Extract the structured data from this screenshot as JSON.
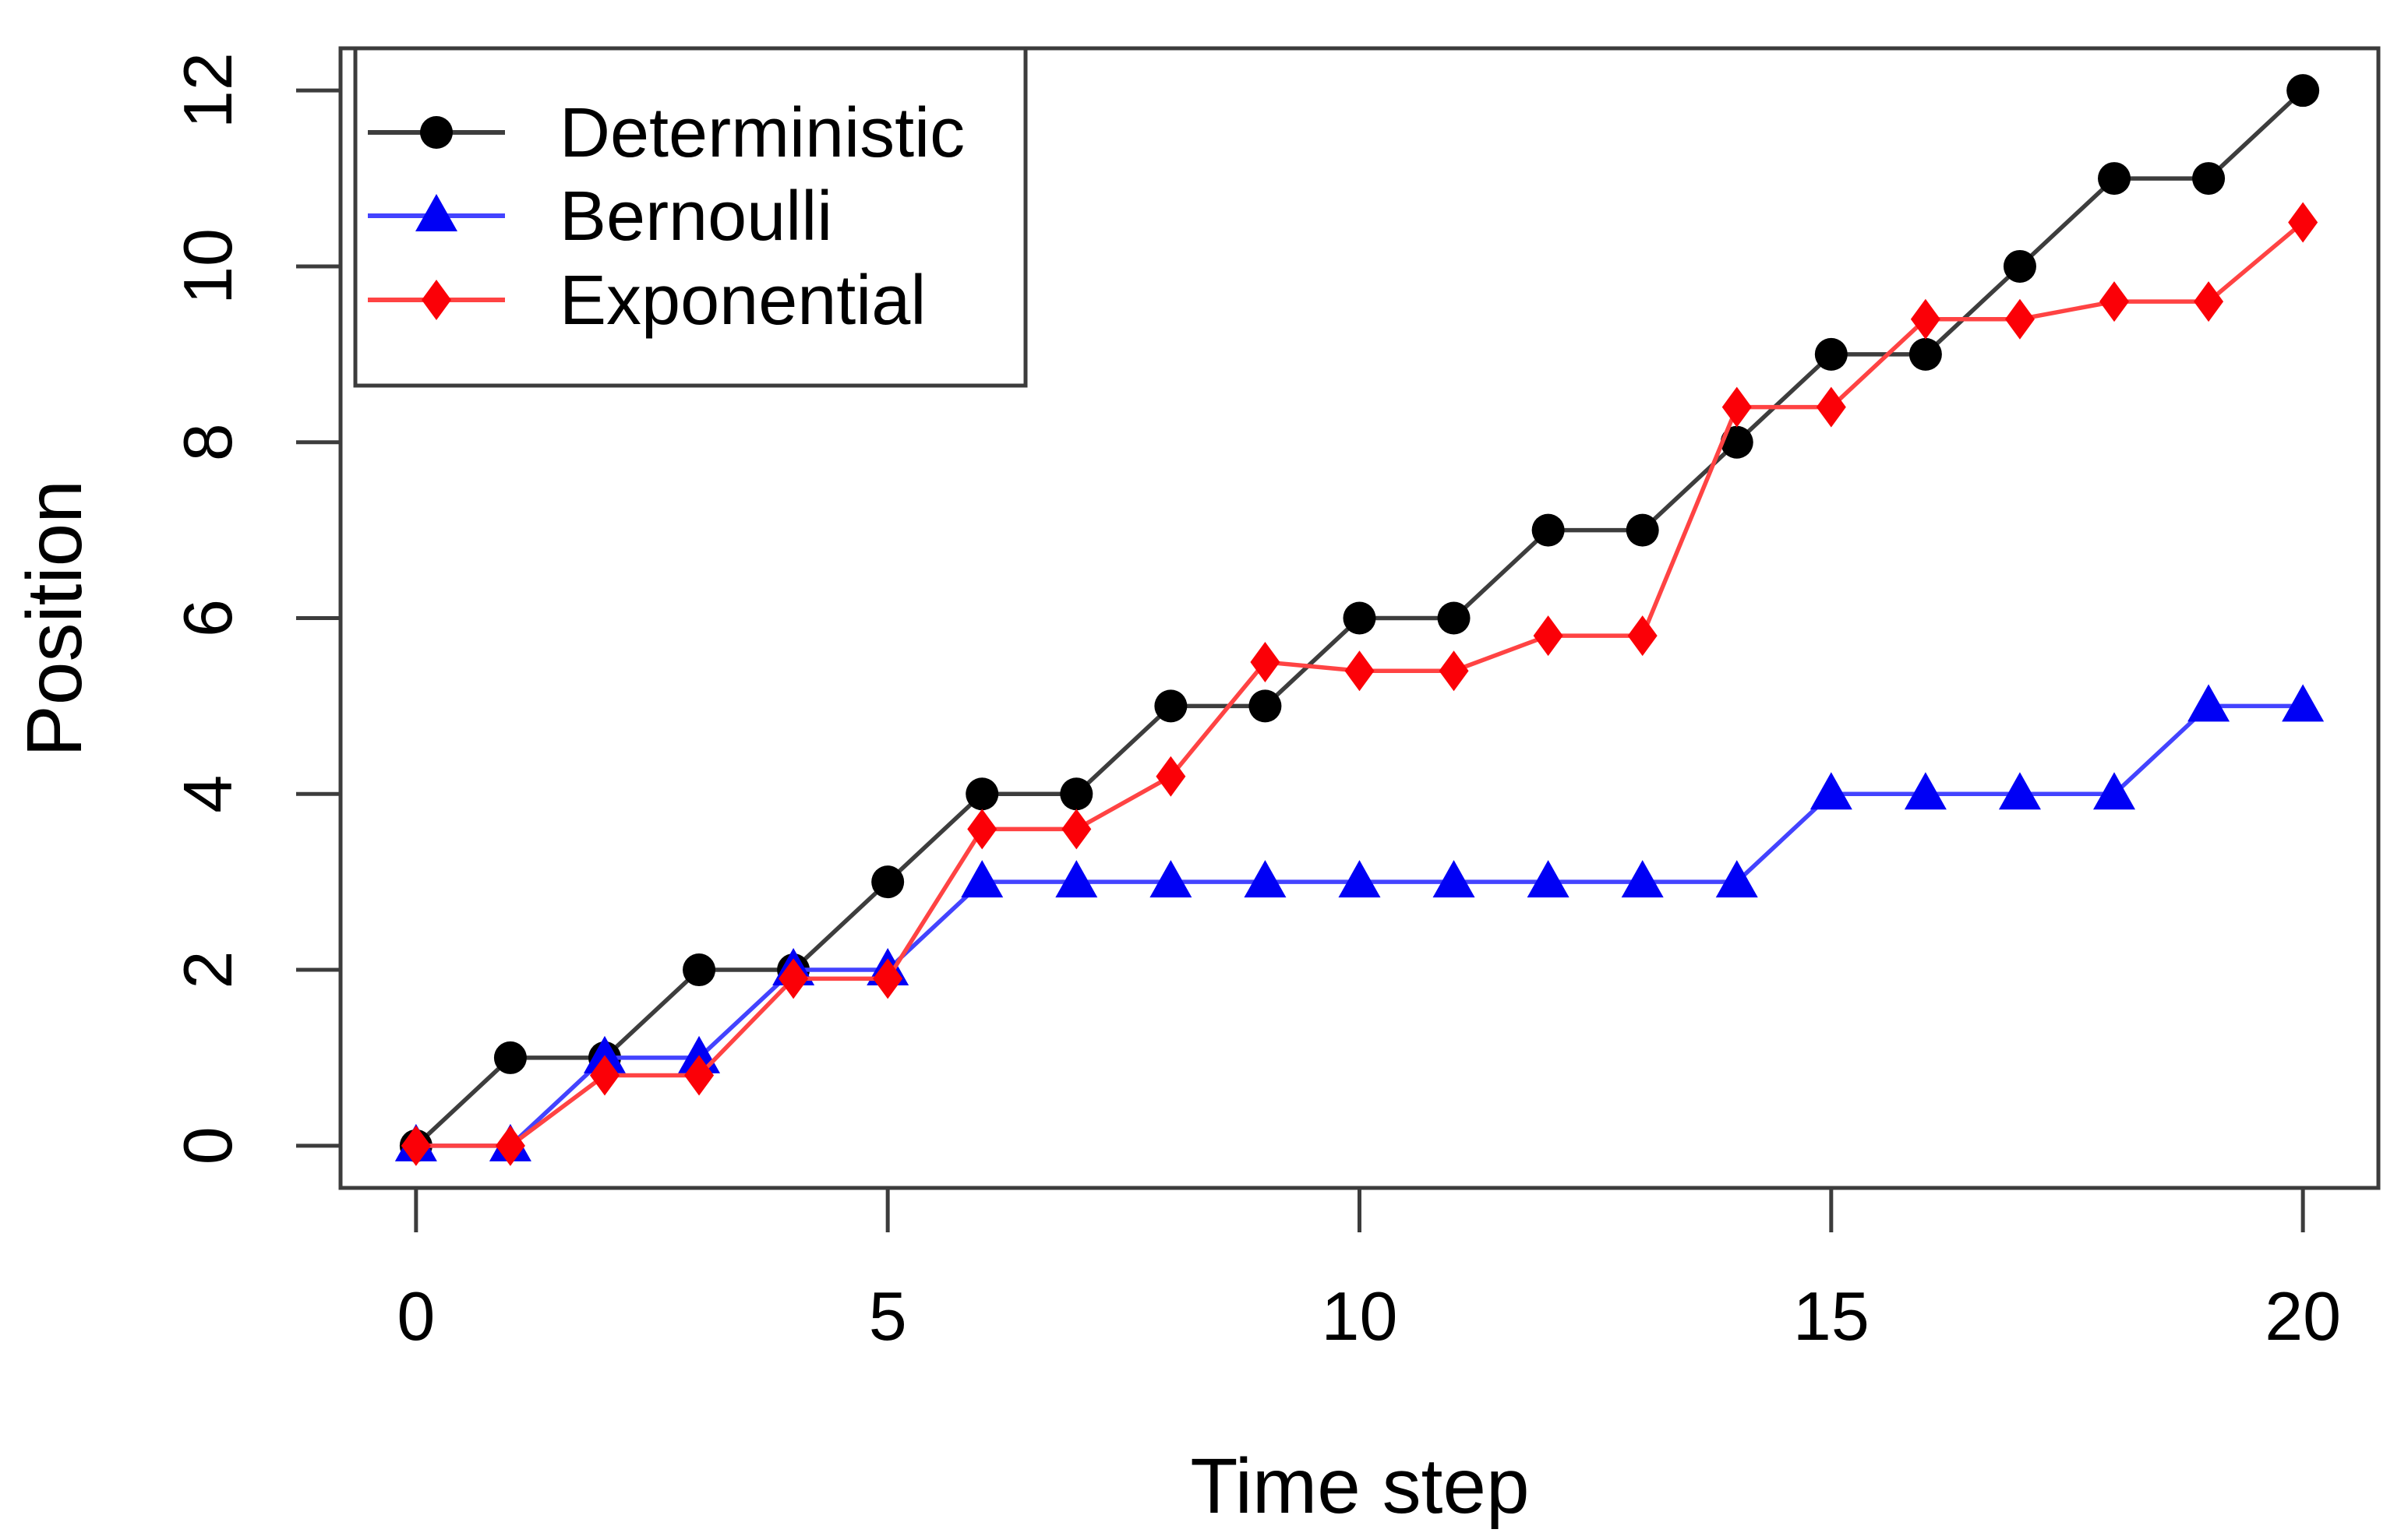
{
  "figure": {
    "background": "#FFFFFF"
  },
  "axes": {
    "xlabel": "Time step",
    "ylabel": "Position"
  },
  "chart_data": {
    "type": "line",
    "title": "",
    "xlabel": "Time step",
    "ylabel": "Position",
    "x": [
      0,
      1,
      2,
      3,
      4,
      5,
      6,
      7,
      8,
      9,
      10,
      11,
      12,
      13,
      14,
      15,
      16,
      17,
      18,
      19,
      20
    ],
    "xlim": [
      0,
      20
    ],
    "ylim": [
      0,
      12
    ],
    "x_ticks": [
      0,
      5,
      10,
      15,
      20
    ],
    "y_ticks": [
      0,
      2,
      4,
      6,
      8,
      10,
      12
    ],
    "grid": false,
    "legend_position": "topleft",
    "series": [
      {
        "name": "Deterministic",
        "marker": "circle",
        "color": "#000000",
        "line_color": "#3d3d3d",
        "values": [
          0,
          1,
          1,
          2,
          2,
          3,
          4,
          4,
          5,
          5,
          6,
          6,
          7,
          7,
          8,
          9,
          9,
          10,
          11,
          11,
          12
        ]
      },
      {
        "name": "Bernoulli",
        "marker": "triangle",
        "color": "#0000f5",
        "line_color": "#4343ff",
        "values": [
          0,
          0,
          1,
          1,
          2,
          2,
          3,
          3,
          3,
          3,
          3,
          3,
          3,
          3,
          3,
          4,
          4,
          4,
          4,
          5,
          5
        ]
      },
      {
        "name": "Exponential",
        "marker": "diamond",
        "color": "#fb0007",
        "line_color": "#ff4343",
        "values": [
          0,
          0,
          0.8,
          0.8,
          1.9,
          1.9,
          3.6,
          3.6,
          4.2,
          5.5,
          5.4,
          5.4,
          5.8,
          5.8,
          8.4,
          8.4,
          9.4,
          9.4,
          9.6,
          9.6,
          10.5
        ]
      }
    ]
  }
}
